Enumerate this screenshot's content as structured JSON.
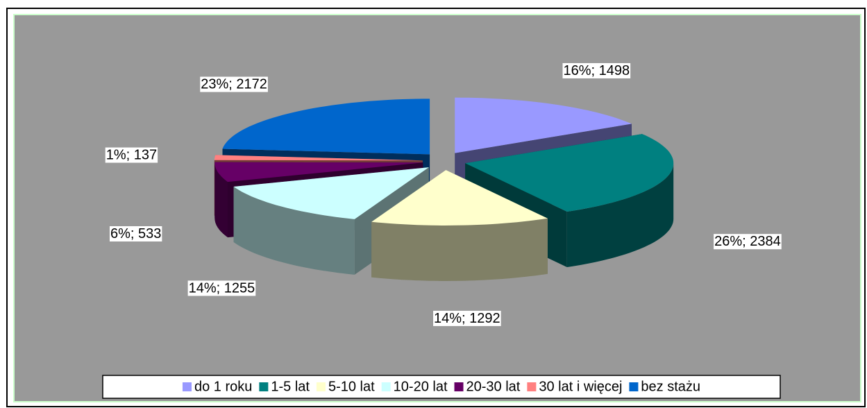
{
  "chart_data": {
    "type": "pie",
    "categories": [
      "do 1 roku",
      "1-5 lat",
      "5-10 lat",
      "10-20 lat",
      "20-30 lat",
      "30 lat i więcej",
      "bez stażu"
    ],
    "values": [
      1498,
      2384,
      1292,
      1255,
      533,
      137,
      2172
    ],
    "value_labels": [
      "16%; 1498",
      "26%; 2384",
      "14%; 1292",
      "14%; 1255",
      "6%; 533",
      "1%; 137",
      "23%; 2172"
    ],
    "colors": [
      "#9999ff",
      "#008080",
      "#ffffcc",
      "#ccffff",
      "#660066",
      "#ff8080",
      "#0066cc"
    ],
    "legend": "bottom"
  }
}
